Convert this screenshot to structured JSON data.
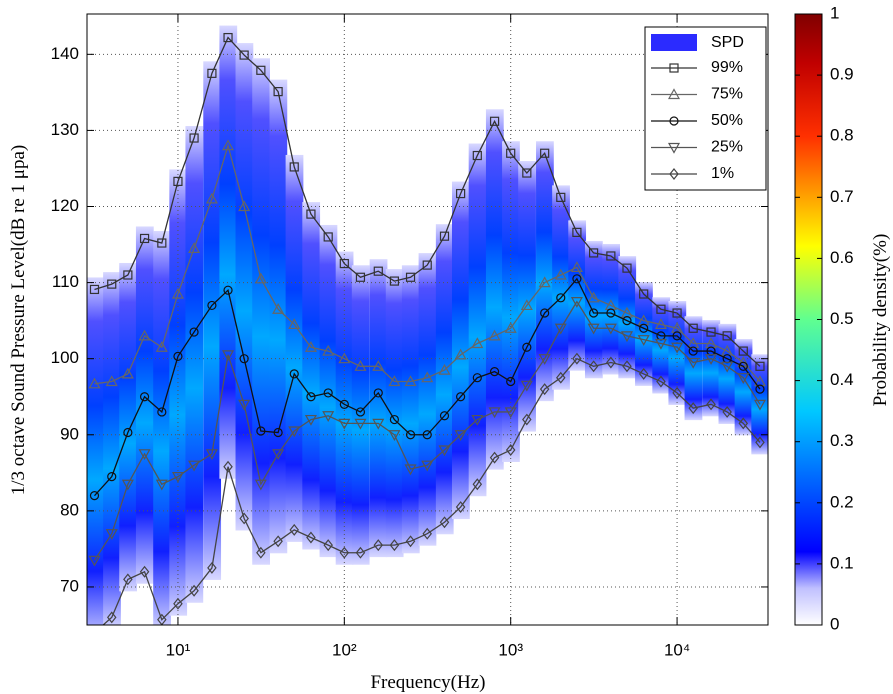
{
  "chart_data": {
    "type": "line",
    "x_label": "Frequency(Hz)",
    "y_label": "1/3 octave Sound Pressure Level(dB re 1 μpa)",
    "log_x": true,
    "grid": true,
    "xlim": [
      2.84,
      35200
    ],
    "ylim": [
      65,
      145.3
    ],
    "xticks": [
      {
        "value": 10,
        "label": "10¹"
      },
      {
        "value": 100,
        "label": "10²"
      },
      {
        "value": 1000,
        "label": "10³"
      },
      {
        "value": 10000,
        "label": "10⁴"
      }
    ],
    "yticks": [
      70,
      80,
      90,
      100,
      110,
      120,
      130,
      140
    ],
    "x": [
      3.15,
      4,
      5,
      6.3,
      8,
      10,
      12.5,
      16,
      20,
      25,
      31.5,
      40,
      50,
      63,
      80,
      100,
      125,
      160,
      200,
      250,
      315,
      400,
      500,
      630,
      800,
      1000,
      1250,
      1600,
      2000,
      2500,
      3150,
      4000,
      5000,
      6300,
      8000,
      10000,
      12500,
      16000,
      20000,
      25000,
      31500
    ],
    "spd": {
      "name": "SPD",
      "color": "#2b2bff"
    },
    "series": [
      {
        "name": "99%",
        "color": "#333333",
        "marker": "square",
        "values": [
          109.1,
          109.8,
          111,
          115.8,
          115.2,
          123.3,
          129,
          137.5,
          142.2,
          139.9,
          137.9,
          135.1,
          125.2,
          119,
          116,
          112.5,
          110.7,
          111.5,
          110.2,
          110.7,
          112.3,
          116.1,
          121.7,
          126.7,
          131.2,
          127,
          124.4,
          127,
          121.2,
          116.6,
          113.9,
          113.5,
          111.9,
          108.5,
          106.5,
          106,
          104,
          103.5,
          103,
          101,
          99
        ]
      },
      {
        "name": "75%",
        "color": "#666666",
        "marker": "triangle-up",
        "values": [
          96.7,
          97,
          98,
          103,
          101.5,
          108.5,
          114.5,
          121,
          128,
          120,
          110.5,
          106.5,
          104.5,
          101.5,
          101,
          100,
          99,
          99,
          97,
          97,
          97.5,
          98.5,
          100.5,
          102,
          103,
          104,
          107,
          110,
          111,
          112,
          108,
          107,
          106,
          105,
          104.5,
          104,
          102,
          102,
          101,
          99.5,
          97
        ]
      },
      {
        "name": "50%",
        "color": "#111111",
        "marker": "circle",
        "values": [
          82,
          84.5,
          90.3,
          95,
          93,
          100.3,
          103.5,
          107,
          109,
          100,
          90.5,
          90.3,
          98,
          95,
          95.5,
          94,
          93,
          95.5,
          92,
          90,
          90,
          92.5,
          95,
          97.5,
          98.3,
          97,
          101.5,
          106,
          108,
          110.5,
          106,
          106,
          105,
          104,
          103,
          103,
          101,
          101,
          100,
          99,
          96
        ]
      },
      {
        "name": "25%",
        "color": "#555555",
        "marker": "triangle-down",
        "values": [
          73.5,
          77,
          83.5,
          87.5,
          83.5,
          84.5,
          86,
          87.5,
          100.5,
          94,
          83.5,
          87.5,
          90.5,
          92,
          92.5,
          91.5,
          91.5,
          91.5,
          90,
          85.5,
          86,
          88,
          90,
          92,
          93,
          93,
          96.5,
          100,
          104,
          107.5,
          104,
          104,
          103,
          102.5,
          102,
          101.5,
          99.5,
          100,
          99,
          97.5,
          94
        ]
      },
      {
        "name": "1%",
        "color": "#444444",
        "marker": "diamond",
        "values": [
          64,
          66,
          71,
          72,
          65.7,
          67.8,
          69.5,
          72.5,
          85.8,
          79,
          74.5,
          76,
          77.5,
          76.5,
          75.5,
          74.5,
          74.5,
          75.5,
          75.5,
          76,
          77,
          78.5,
          80.5,
          83.5,
          87,
          88,
          92,
          96,
          97.5,
          100,
          99,
          99.5,
          99,
          98,
          97,
          95.5,
          93.5,
          94,
          93,
          91.5,
          89
        ]
      }
    ],
    "colorbar": {
      "label": "Probability density(%)",
      "lim": [
        0,
        1
      ],
      "ticks": [
        0,
        0.1,
        0.2,
        0.3,
        0.4,
        0.5,
        0.6,
        0.7,
        0.8,
        0.9,
        1
      ]
    }
  }
}
